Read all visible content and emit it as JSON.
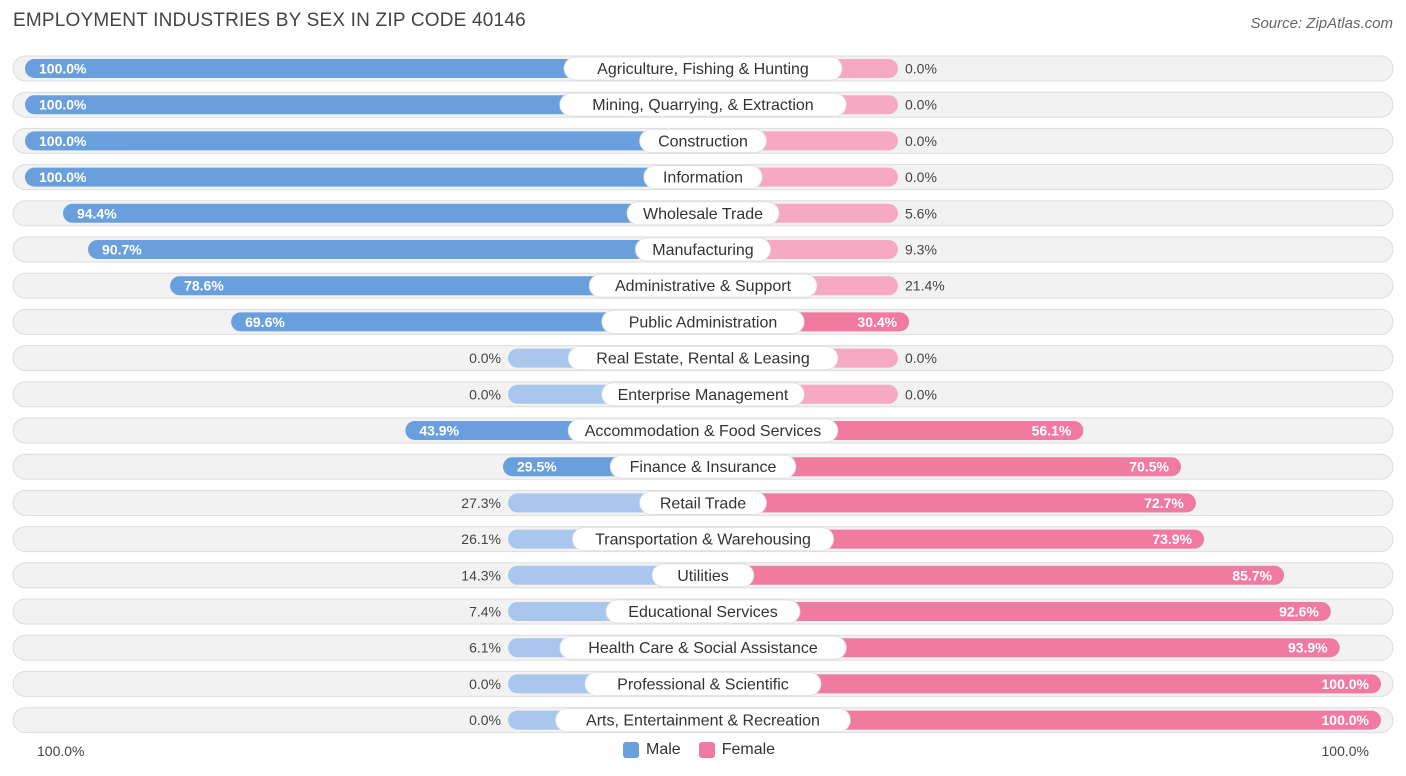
{
  "chart_data": {
    "type": "bar",
    "orientation": "horizontal-diverging",
    "title": "EMPLOYMENT INDUSTRIES BY SEX IN ZIP CODE 40146",
    "source": "Source: ZipAtlas.com",
    "axis_left_label": "100.0%",
    "axis_right_label": "100.0%",
    "categories": [
      "Agriculture, Fishing & Hunting",
      "Mining, Quarrying, & Extraction",
      "Construction",
      "Information",
      "Wholesale Trade",
      "Manufacturing",
      "Administrative & Support",
      "Public Administration",
      "Real Estate, Rental & Leasing",
      "Enterprise Management",
      "Accommodation & Food Services",
      "Finance & Insurance",
      "Retail Trade",
      "Transportation & Warehousing",
      "Utilities",
      "Educational Services",
      "Health Care & Social Assistance",
      "Professional & Scientific",
      "Arts, Entertainment & Recreation"
    ],
    "series": [
      {
        "name": "Male",
        "color": "#6a9fde",
        "color_light": "#a9c7ec",
        "values": [
          100.0,
          100.0,
          100.0,
          100.0,
          94.4,
          90.7,
          78.6,
          69.6,
          0.0,
          0.0,
          43.9,
          29.5,
          27.3,
          26.1,
          14.3,
          7.4,
          6.1,
          0.0,
          0.0
        ],
        "labels": [
          "100.0%",
          "100.0%",
          "100.0%",
          "100.0%",
          "94.4%",
          "90.7%",
          "78.6%",
          "69.6%",
          "0.0%",
          "0.0%",
          "43.9%",
          "29.5%",
          "27.3%",
          "26.1%",
          "14.3%",
          "7.4%",
          "6.1%",
          "0.0%",
          "0.0%"
        ]
      },
      {
        "name": "Female",
        "color": "#f07aa0",
        "color_light": "#f6a9c2",
        "values": [
          0.0,
          0.0,
          0.0,
          0.0,
          5.6,
          9.3,
          21.4,
          30.4,
          0.0,
          0.0,
          56.1,
          70.5,
          72.7,
          73.9,
          85.7,
          92.6,
          93.9,
          100.0,
          100.0
        ],
        "labels": [
          "0.0%",
          "0.0%",
          "0.0%",
          "0.0%",
          "5.6%",
          "9.3%",
          "21.4%",
          "30.4%",
          "0.0%",
          "0.0%",
          "56.1%",
          "70.5%",
          "72.7%",
          "73.9%",
          "85.7%",
          "92.6%",
          "93.9%",
          "100.0%",
          "100.0%"
        ]
      }
    ],
    "xlim": [
      -100,
      100
    ],
    "legend": "bottom-center"
  }
}
